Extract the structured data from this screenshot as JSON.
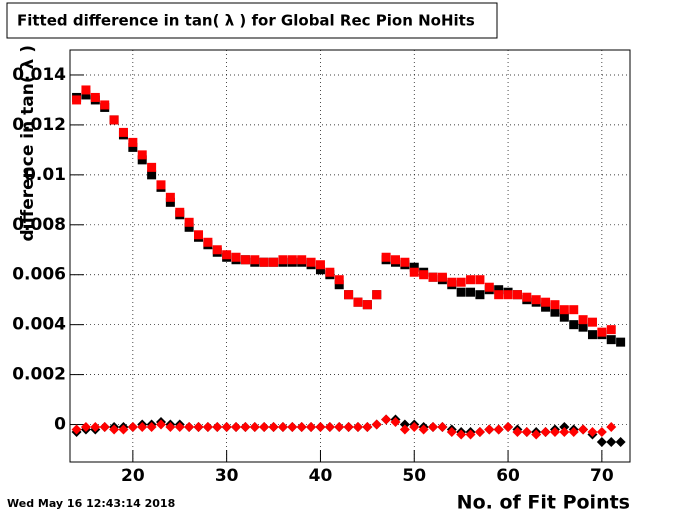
{
  "chart_data": {
    "type": "scatter",
    "title": "Fitted difference in tan( λ ) for Global Rec Pion NoHits",
    "xlabel": "No. of Fit Points",
    "ylabel": "difference in tan( λ )",
    "timestamp": "Wed May 16 12:43:14 2018",
    "xlim": [
      13.3,
      73
    ],
    "ylim": [
      -0.0015,
      0.015
    ],
    "xticks": [
      20,
      30,
      40,
      50,
      60,
      70
    ],
    "yticks": [
      0,
      0.002,
      0.004,
      0.006,
      0.008,
      0.01,
      0.012,
      0.014
    ],
    "grid": true,
    "x": [
      14,
      15,
      16,
      17,
      18,
      19,
      20,
      21,
      22,
      23,
      24,
      25,
      26,
      27,
      28,
      29,
      30,
      31,
      32,
      33,
      34,
      35,
      36,
      37,
      38,
      39,
      40,
      41,
      42,
      43,
      44,
      45,
      46,
      47,
      48,
      49,
      50,
      51,
      52,
      53,
      54,
      55,
      56,
      57,
      58,
      59,
      60,
      61,
      62,
      63,
      64,
      65,
      66,
      67,
      68,
      69,
      70,
      71,
      72
    ],
    "series": [
      {
        "color": "#000000",
        "marker": "square",
        "values": [
          0.0131,
          0.0132,
          0.013,
          0.0127,
          0.0122,
          0.0116,
          0.0111,
          0.0106,
          0.01,
          0.0095,
          0.0089,
          0.0084,
          0.0079,
          0.0075,
          0.0072,
          0.0069,
          0.0067,
          0.0066,
          0.0066,
          0.0065,
          0.0065,
          0.0065,
          0.0065,
          0.0065,
          0.0065,
          0.0064,
          0.0062,
          0.006,
          0.0056,
          0.0052,
          0.0049,
          0.0048,
          0.0052,
          0.0066,
          0.0065,
          0.0064,
          0.0063,
          0.0061,
          0.0059,
          0.0058,
          0.0056,
          0.0053,
          0.0053,
          0.0052,
          0.0054,
          0.0054,
          0.0053,
          0.0052,
          0.005,
          0.0049,
          0.0047,
          0.0045,
          0.0043,
          0.004,
          0.0039,
          0.0036,
          0.0036,
          0.0034,
          0.0033
        ]
      },
      {
        "color": "#ff0000",
        "marker": "square",
        "values": [
          0.013,
          0.0134,
          0.0131,
          0.0128,
          0.0122,
          0.0117,
          0.0113,
          0.0108,
          0.0103,
          0.0096,
          0.0091,
          0.0085,
          0.0081,
          0.0076,
          0.0073,
          0.007,
          0.0068,
          0.0067,
          0.0066,
          0.0066,
          0.0065,
          0.0065,
          0.0066,
          0.0066,
          0.0066,
          0.0065,
          0.0064,
          0.0061,
          0.0058,
          0.0052,
          0.0049,
          0.0048,
          0.0052,
          0.0067,
          0.0066,
          0.0065,
          0.0061,
          0.006,
          0.0059,
          0.0059,
          0.0057,
          0.0057,
          0.0058,
          0.0058,
          0.0055,
          0.0052,
          0.0052,
          0.0052,
          0.0051,
          0.005,
          0.0049,
          0.0048,
          0.0046,
          0.0046,
          0.0042,
          0.0041,
          0.0037,
          0.0038,
          null
        ]
      },
      {
        "color": "#000000",
        "marker": "diamond",
        "values": [
          -0.0003,
          -0.0002,
          -0.0002,
          -0.0001,
          -0.0001,
          -0.0001,
          -0.0001,
          0,
          0,
          0.0001,
          0,
          0,
          -0.0001,
          -0.0001,
          -0.0001,
          -0.0001,
          -0.0001,
          -0.0001,
          -0.0001,
          -0.0001,
          -0.0001,
          -0.0001,
          -0.0001,
          -0.0001,
          -0.0001,
          -0.0001,
          -0.0001,
          -0.0001,
          -0.0001,
          -0.0001,
          -0.0001,
          -0.0001,
          0,
          0.0002,
          0.0002,
          0,
          0,
          -0.0001,
          -0.0001,
          -0.0001,
          -0.0002,
          -0.0003,
          -0.0003,
          -0.0003,
          -0.0002,
          -0.0002,
          -0.0001,
          -0.0002,
          -0.0003,
          -0.0003,
          -0.0003,
          -0.0002,
          -0.0001,
          -0.0002,
          -0.0002,
          -0.0004,
          -0.0007,
          -0.0007,
          -0.0007
        ]
      },
      {
        "color": "#ff0000",
        "marker": "diamond",
        "values": [
          -0.0002,
          -0.0001,
          -0.0001,
          -0.0001,
          -0.0002,
          -0.0002,
          -0.0001,
          -0.0001,
          -0.0001,
          0,
          -0.0001,
          -0.0001,
          -0.0001,
          -0.0001,
          -0.0001,
          -0.0001,
          -0.0001,
          -0.0001,
          -0.0001,
          -0.0001,
          -0.0001,
          -0.0001,
          -0.0001,
          -0.0001,
          -0.0001,
          -0.0001,
          -0.0001,
          -0.0001,
          -0.0001,
          -0.0001,
          -0.0001,
          -0.0001,
          0,
          0.0002,
          0.0001,
          -0.0002,
          -0.0001,
          -0.0002,
          -0.0001,
          -0.0001,
          -0.0003,
          -0.0004,
          -0.0004,
          -0.0003,
          -0.0002,
          -0.0002,
          -0.0001,
          -0.0003,
          -0.0003,
          -0.0004,
          -0.0003,
          -0.0003,
          -0.0003,
          -0.0003,
          -0.0002,
          -0.0003,
          -0.0003,
          -0.0001,
          null
        ]
      }
    ]
  }
}
